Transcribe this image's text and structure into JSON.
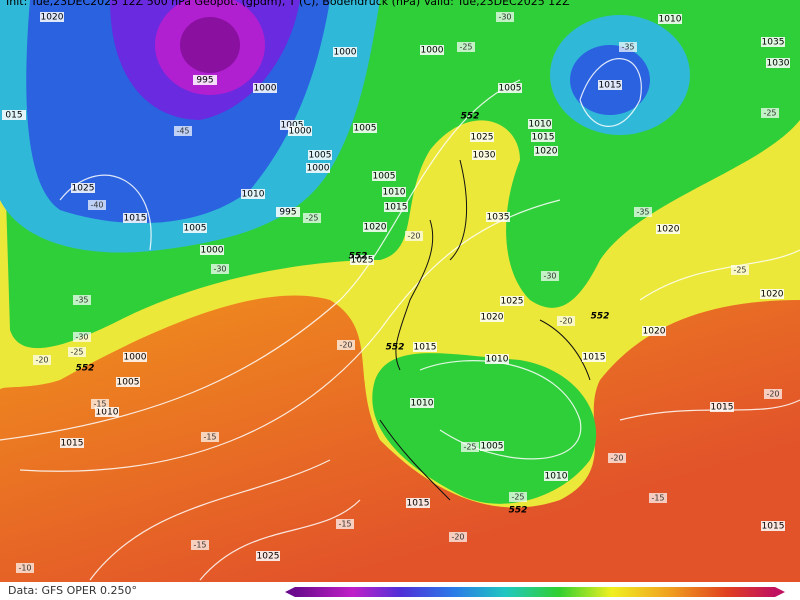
{
  "header": {
    "title": "Init: Tue,23DEC2025 12Z   500 hPa Geopot. (gpdm), T (C), Bodendruck (hPa)   Valid: Tue,23DEC2025 12Z"
  },
  "map": {
    "isobar_labels": [
      "1020",
      "995",
      "1000",
      "1000",
      "1000",
      "1005",
      "1010",
      "1015",
      "1035",
      "1030",
      "015",
      "1005",
      "1000",
      "1005",
      "1025",
      "1010",
      "1015",
      "1020",
      "1030",
      "1005",
      "1000",
      "1005",
      "1010",
      "1015",
      "1010",
      "995",
      "1025",
      "1015",
      "1005",
      "1000",
      "1035",
      "1020",
      "1025",
      "1020",
      "1020",
      "1025",
      "1020",
      "1015",
      "1010",
      "1015",
      "1020",
      "1000",
      "1005",
      "1010",
      "1015",
      "1010",
      "1005",
      "1010",
      "1015",
      "1015",
      "1015",
      "1025"
    ],
    "temperature_labels": [
      "-25",
      "-30",
      "-35",
      "-25",
      "-45",
      "-40",
      "-30",
      "-35",
      "-30",
      "-25",
      "-20",
      "-15",
      "-25",
      "-20",
      "-35",
      "-30",
      "-25",
      "-20",
      "-20",
      "-20",
      "-15",
      "-25",
      "-20",
      "-15",
      "-15",
      "-20",
      "-15",
      "-10",
      "-25"
    ],
    "height_labels": [
      "552",
      "552",
      "552",
      "552",
      "552",
      "552"
    ]
  },
  "footer": {
    "source": "Data: GFS OPER 0.250°"
  }
}
